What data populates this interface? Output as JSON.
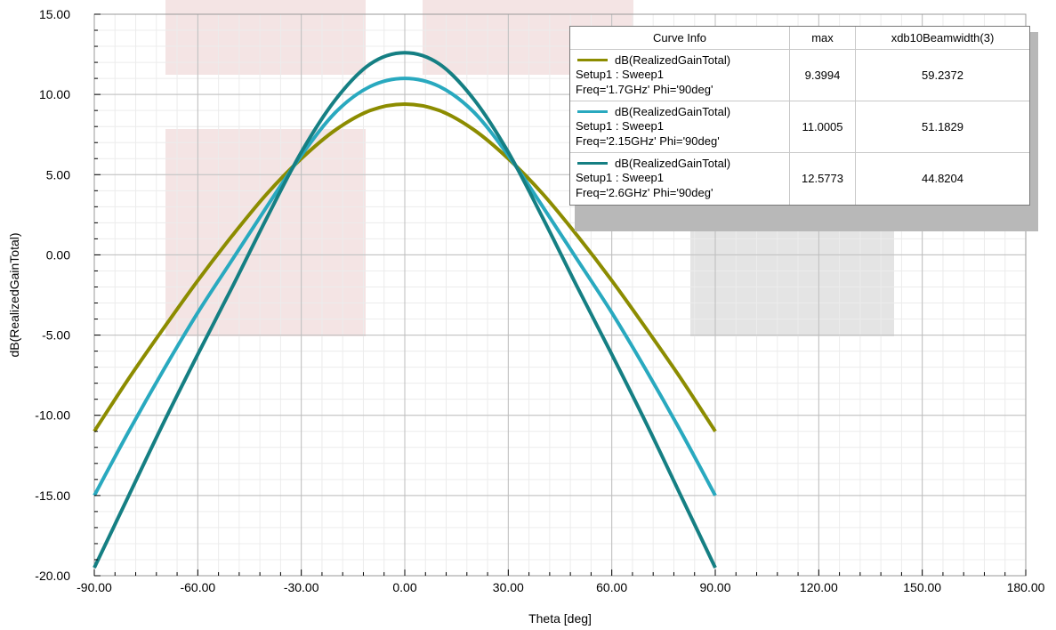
{
  "chart_data": {
    "type": "line",
    "title": "",
    "xlabel": "Theta [deg]",
    "ylabel": "dB(RealizedGainTotal)",
    "xlim": [
      -90,
      180
    ],
    "ylim": [
      -20,
      15
    ],
    "x_ticks": [
      -90,
      -60,
      -30,
      0,
      30,
      60,
      90,
      120,
      150,
      180
    ],
    "x_tick_labels": [
      "-90.00",
      "-60.00",
      "-30.00",
      "0.00",
      "30.00",
      "60.00",
      "90.00",
      "120.00",
      "150.00",
      "180.00"
    ],
    "y_ticks": [
      15,
      10,
      5,
      0,
      -5,
      -10,
      -15,
      -20
    ],
    "y_tick_labels": [
      "15.00",
      "10.00",
      "5.00",
      "0.00",
      "-5.00",
      "-10.00",
      "-15.00",
      "-20.00"
    ],
    "grid": true,
    "legend_position": "top-right",
    "x": [
      -90,
      -80,
      -70,
      -60,
      -50,
      -40,
      -30,
      -20,
      -10,
      0,
      10,
      20,
      30,
      40,
      50,
      60,
      70,
      80,
      90
    ],
    "series": [
      {
        "color": "#8c8c00",
        "values": [
          -11.0,
          -7.7,
          -4.6,
          -1.6,
          1.2,
          3.8,
          6.0,
          7.8,
          9.0,
          9.4,
          9.0,
          7.8,
          6.0,
          3.8,
          1.2,
          -1.6,
          -4.6,
          -7.7,
          -11.0
        ]
      },
      {
        "color": "#29a9bf",
        "values": [
          -15.0,
          -11.0,
          -7.2,
          -3.6,
          -0.3,
          3.0,
          6.2,
          8.9,
          10.5,
          11.0,
          10.5,
          8.9,
          6.2,
          3.0,
          -0.3,
          -3.6,
          -7.2,
          -11.0,
          -15.0
        ]
      },
      {
        "color": "#157f83",
        "values": [
          -19.5,
          -15.0,
          -10.5,
          -6.2,
          -2.0,
          2.3,
          6.4,
          9.7,
          11.9,
          12.6,
          11.9,
          9.7,
          6.4,
          2.3,
          -2.0,
          -6.2,
          -10.5,
          -15.0,
          -19.5
        ]
      }
    ]
  },
  "legend": {
    "headers": [
      "Curve Info",
      "max",
      "xdb10Beamwidth(3)"
    ],
    "rows": [
      {
        "color": "#8c8c00",
        "name": "dB(RealizedGainTotal)",
        "setup": "Setup1 : Sweep1",
        "params": "Freq='1.7GHz' Phi='90deg'",
        "max": "9.3994",
        "beamwidth": "59.2372"
      },
      {
        "color": "#29a9bf",
        "name": "dB(RealizedGainTotal)",
        "setup": "Setup1 : Sweep1",
        "params": "Freq='2.15GHz' Phi='90deg'",
        "max": "11.0005",
        "beamwidth": "51.1829"
      },
      {
        "color": "#157f83",
        "name": "dB(RealizedGainTotal)",
        "setup": "Setup1 : Sweep1",
        "params": "Freq='2.6GHz' Phi='90deg'",
        "max": "12.5773",
        "beamwidth": "44.8204"
      }
    ]
  }
}
